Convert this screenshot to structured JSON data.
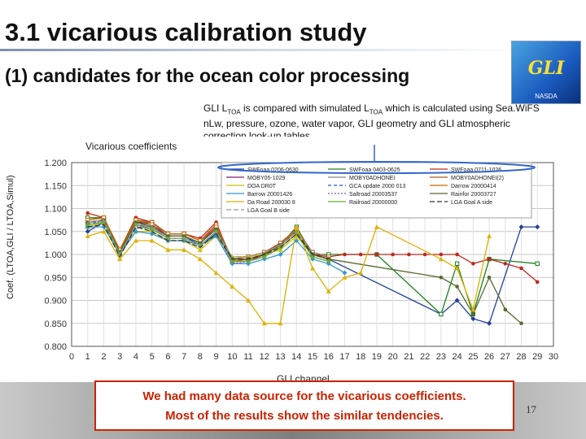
{
  "slide": {
    "title": "3.1 vicarious calibration study",
    "subtitle": "(1) candidates for the ocean color processing",
    "note_prefix": "GLI L",
    "note_sub1": "TOA",
    "note_mid": " is compared with simulated L",
    "note_sub2": "TOA",
    "note_rest": " which is calculated using Sea.WiFS nLw, pressure, ozone, water vapor, GLI geometry and GLI atmospheric correction look-up tables.",
    "conclusion_line1": "We had many data source for the vicarious coefficients.",
    "conclusion_line2": "Most of the results show the similar tendencies.",
    "page_number": "17",
    "logo_text": "GLI",
    "logo_sub": "NASDA"
  },
  "chart_data": {
    "type": "line",
    "title": "Vicarious coefficients",
    "xlabel": "GLI channel",
    "ylabel": "Coef. (LTOA,GLI / LTOA,Simul)",
    "xlim": [
      0,
      30
    ],
    "ylim": [
      0.8,
      1.2
    ],
    "ytick_labels": [
      "0.800",
      "0.850",
      "0.900",
      "0.950",
      "1.000",
      "1.050",
      "1.100",
      "1.150",
      "1.200"
    ],
    "xtick_labels": [
      "0",
      "1",
      "2",
      "3",
      "4",
      "5",
      "6",
      "7",
      "8",
      "9",
      "10",
      "11",
      "12",
      "13",
      "14",
      "15",
      "16",
      "17",
      "18",
      "19",
      "20",
      "21",
      "22",
      "23",
      "24",
      "25",
      "26",
      "27",
      "28",
      "29",
      "30"
    ],
    "grid": true,
    "legend_position": "top",
    "series": [
      {
        "name": "SWFoaa 0206-0630",
        "color": "#1f3f9f",
        "marker": "diamond",
        "dash": "",
        "x": [
          1,
          2,
          3,
          4,
          5,
          6,
          7,
          8,
          9,
          10,
          11,
          12,
          13,
          14,
          15,
          16,
          23,
          24,
          25,
          26,
          28,
          29
        ],
        "y": [
          1.05,
          1.07,
          1.01,
          1.065,
          1.06,
          1.04,
          1.04,
          1.02,
          1.045,
          0.99,
          0.99,
          1.0,
          1.02,
          1.05,
          1.0,
          0.99,
          0.87,
          0.9,
          0.86,
          0.85,
          1.06,
          1.06
        ]
      },
      {
        "name": "SWFoaa 0403-0625",
        "color": "#1a7f1a",
        "marker": "square",
        "dash": "",
        "x": [
          1,
          2,
          3,
          4,
          5,
          6,
          7,
          8,
          9,
          10,
          11,
          12,
          13,
          14,
          15,
          16,
          19,
          23,
          24,
          25,
          26,
          29
        ],
        "y": [
          1.08,
          1.08,
          1.005,
          1.07,
          1.07,
          1.045,
          1.045,
          1.03,
          1.06,
          0.99,
          0.99,
          1.0,
          1.02,
          1.06,
          1.0,
          1.0,
          1.0,
          0.87,
          0.98,
          0.87,
          0.99,
          0.98
        ]
      },
      {
        "name": "SWFoaa 0711-1026",
        "color": "#c0281c",
        "marker": "circle",
        "dash": "",
        "x": [
          1,
          2,
          3,
          4,
          5,
          6,
          7,
          8,
          9,
          10,
          11,
          12,
          13,
          14,
          15,
          16,
          17,
          18,
          19,
          20,
          21,
          22,
          23,
          24,
          25,
          26,
          27,
          28,
          29
        ],
        "y": [
          1.09,
          1.08,
          1.01,
          1.08,
          1.07,
          1.045,
          1.045,
          1.035,
          1.07,
          0.985,
          0.985,
          1.0,
          1.025,
          1.055,
          1.0,
          0.995,
          1.0,
          1.0,
          1.0,
          1.0,
          1.0,
          1.0,
          1.0,
          1.0,
          0.98,
          0.99,
          0.98,
          0.97,
          0.94
        ]
      },
      {
        "name": "MOBY05-1029",
        "color": "#7f1f7f",
        "marker": "square",
        "dash": "",
        "x": [
          1,
          2,
          3,
          4,
          5,
          6,
          7,
          8,
          9,
          10,
          11,
          12,
          13,
          14,
          15,
          16
        ],
        "y": [
          1.07,
          1.075,
          1.005,
          1.07,
          1.065,
          1.04,
          1.04,
          1.025,
          1.06,
          0.985,
          0.99,
          1.0,
          1.02,
          1.05,
          1.0,
          0.99
        ]
      },
      {
        "name": "MOBY0ADHONEI",
        "color": "#888888",
        "marker": "square",
        "dash": "",
        "x": [
          1,
          2,
          3,
          4,
          5,
          6,
          7,
          8,
          9,
          10,
          11,
          12,
          13,
          14,
          15,
          16
        ],
        "y": [
          1.06,
          1.07,
          1.0,
          1.06,
          1.055,
          1.035,
          1.035,
          1.02,
          1.05,
          0.985,
          0.99,
          1.0,
          1.02,
          1.05,
          1.0,
          0.99
        ]
      },
      {
        "name": "MOBY0ADHONEI(2)",
        "color": "#b05a20",
        "marker": "square",
        "dash": "",
        "x": [
          1,
          2,
          3,
          4,
          5,
          6,
          7,
          8,
          9,
          10,
          11,
          12,
          13,
          14,
          15,
          16
        ],
        "y": [
          1.075,
          1.08,
          1.01,
          1.075,
          1.07,
          1.045,
          1.045,
          1.03,
          1.065,
          0.99,
          0.995,
          1.005,
          1.025,
          1.055,
          1.005,
          0.995
        ]
      },
      {
        "name": "DOA DR0T",
        "color": "#d0c000",
        "marker": "triangle",
        "dash": "",
        "x": [
          1,
          2,
          3,
          4,
          5,
          6,
          7,
          8,
          9,
          10,
          11,
          12,
          13,
          14,
          15,
          16
        ],
        "y": [
          1.06,
          1.07,
          1.0,
          1.05,
          1.05,
          1.03,
          1.03,
          1.01,
          1.04,
          0.995,
          0.995,
          1.0,
          1.01,
          1.04,
          1.0,
          0.99
        ]
      },
      {
        "name": "GCA update 2000 013",
        "color": "#2255cc",
        "marker": "none",
        "dash": "4,3",
        "x": [
          1,
          2,
          3,
          4,
          5,
          6,
          7,
          8,
          9,
          10,
          11,
          12,
          13,
          14,
          15,
          16
        ],
        "y": [
          1.065,
          1.075,
          1.005,
          1.065,
          1.06,
          1.04,
          1.04,
          1.025,
          1.055,
          0.99,
          0.99,
          1.0,
          1.02,
          1.05,
          1.0,
          0.99
        ]
      },
      {
        "name": "Darrow 20000414",
        "color": "#cc6600",
        "marker": "square",
        "dash": "",
        "x": [
          1,
          2,
          3,
          4,
          5,
          6,
          7,
          8,
          9,
          10,
          11,
          12,
          13,
          14,
          15,
          16
        ],
        "y": [
          1.075,
          1.08,
          1.01,
          1.075,
          1.065,
          1.045,
          1.045,
          1.03,
          1.06,
          0.985,
          0.99,
          1.0,
          1.02,
          1.055,
          1.0,
          0.99
        ]
      },
      {
        "name": "Barrow 20001426",
        "color": "#3399cc",
        "marker": "diamond",
        "dash": "",
        "x": [
          1,
          2,
          3,
          4,
          5,
          6,
          7,
          8,
          9,
          10,
          11,
          12,
          13,
          14,
          15,
          16,
          17
        ],
        "y": [
          1.06,
          1.06,
          1.0,
          1.05,
          1.045,
          1.03,
          1.03,
          1.02,
          1.04,
          0.98,
          0.98,
          0.99,
          1.0,
          1.03,
          0.99,
          0.98,
          0.96
        ]
      },
      {
        "name": "Saltroad 20003537",
        "color": "#8855aa",
        "marker": "none",
        "dash": "2,2",
        "x": [
          1,
          2,
          3,
          4,
          5,
          6,
          7,
          8,
          9,
          10,
          11,
          12,
          13,
          14,
          15,
          16
        ],
        "y": [
          1.07,
          1.07,
          1.0,
          1.06,
          1.06,
          1.035,
          1.035,
          1.02,
          1.05,
          0.98,
          0.985,
          0.995,
          1.015,
          1.045,
          0.995,
          0.985
        ]
      },
      {
        "name": "Rainfor 20003727",
        "color": "#556b2f",
        "marker": "circle",
        "dash": "",
        "x": [
          1,
          2,
          3,
          4,
          5,
          6,
          7,
          8,
          9,
          10,
          11,
          12,
          13,
          14,
          15,
          16,
          23,
          24,
          25,
          26,
          27,
          28
        ],
        "y": [
          1.07,
          1.075,
          1.005,
          1.07,
          1.06,
          1.04,
          1.04,
          1.025,
          1.055,
          0.99,
          0.99,
          1.0,
          1.02,
          1.05,
          1.0,
          0.99,
          0.95,
          0.93,
          0.87,
          0.95,
          0.88,
          0.85
        ]
      },
      {
        "name": "Da Road 200030 8",
        "color": "#e0b000",
        "marker": "triangle",
        "dash": "",
        "x": [
          1,
          2,
          3,
          4,
          5,
          6,
          7,
          8,
          9,
          10,
          11,
          12,
          13,
          14,
          15,
          16,
          17,
          18,
          19,
          23,
          24,
          25,
          26
        ],
        "y": [
          1.04,
          1.05,
          0.99,
          1.03,
          1.03,
          1.01,
          1.01,
          0.99,
          0.96,
          0.93,
          0.9,
          0.85,
          0.85,
          1.06,
          0.97,
          0.92,
          0.95,
          0.96,
          1.06,
          0.99,
          0.97,
          0.88,
          1.04
        ]
      },
      {
        "name": "Railroad 20000000",
        "color": "#66aa33",
        "marker": "circle",
        "dash": "",
        "x": [
          1,
          2,
          3,
          4,
          5,
          6,
          7,
          8,
          9,
          10,
          11,
          12,
          13,
          14,
          15,
          16
        ],
        "y": [
          1.065,
          1.07,
          1.0,
          1.065,
          1.055,
          1.035,
          1.035,
          1.02,
          1.05,
          0.985,
          0.985,
          0.995,
          1.015,
          1.045,
          0.995,
          0.985
        ]
      },
      {
        "name": "LGA Goal A side",
        "color": "#333333",
        "marker": "none",
        "dash": "6,3",
        "x": [
          1,
          2,
          3,
          4,
          5,
          6,
          7,
          8,
          9,
          10,
          11,
          12,
          13,
          14,
          15,
          16
        ],
        "y": [
          1.06,
          1.065,
          0.995,
          1.06,
          1.05,
          1.03,
          1.03,
          1.015,
          1.045,
          0.99,
          0.99,
          1.0,
          1.015,
          1.045,
          1.0,
          0.99
        ]
      },
      {
        "name": "LGA Goal B side",
        "color": "#999999",
        "marker": "none",
        "dash": "6,3",
        "x": [
          1,
          2,
          3,
          4,
          5,
          6,
          7,
          8,
          9,
          10,
          11,
          12,
          13,
          14,
          15,
          16
        ],
        "y": [
          1.07,
          1.075,
          1.0,
          1.065,
          1.06,
          1.035,
          1.035,
          1.02,
          1.05,
          0.995,
          0.995,
          1.005,
          1.02,
          1.05,
          1.005,
          0.995
        ]
      }
    ]
  }
}
